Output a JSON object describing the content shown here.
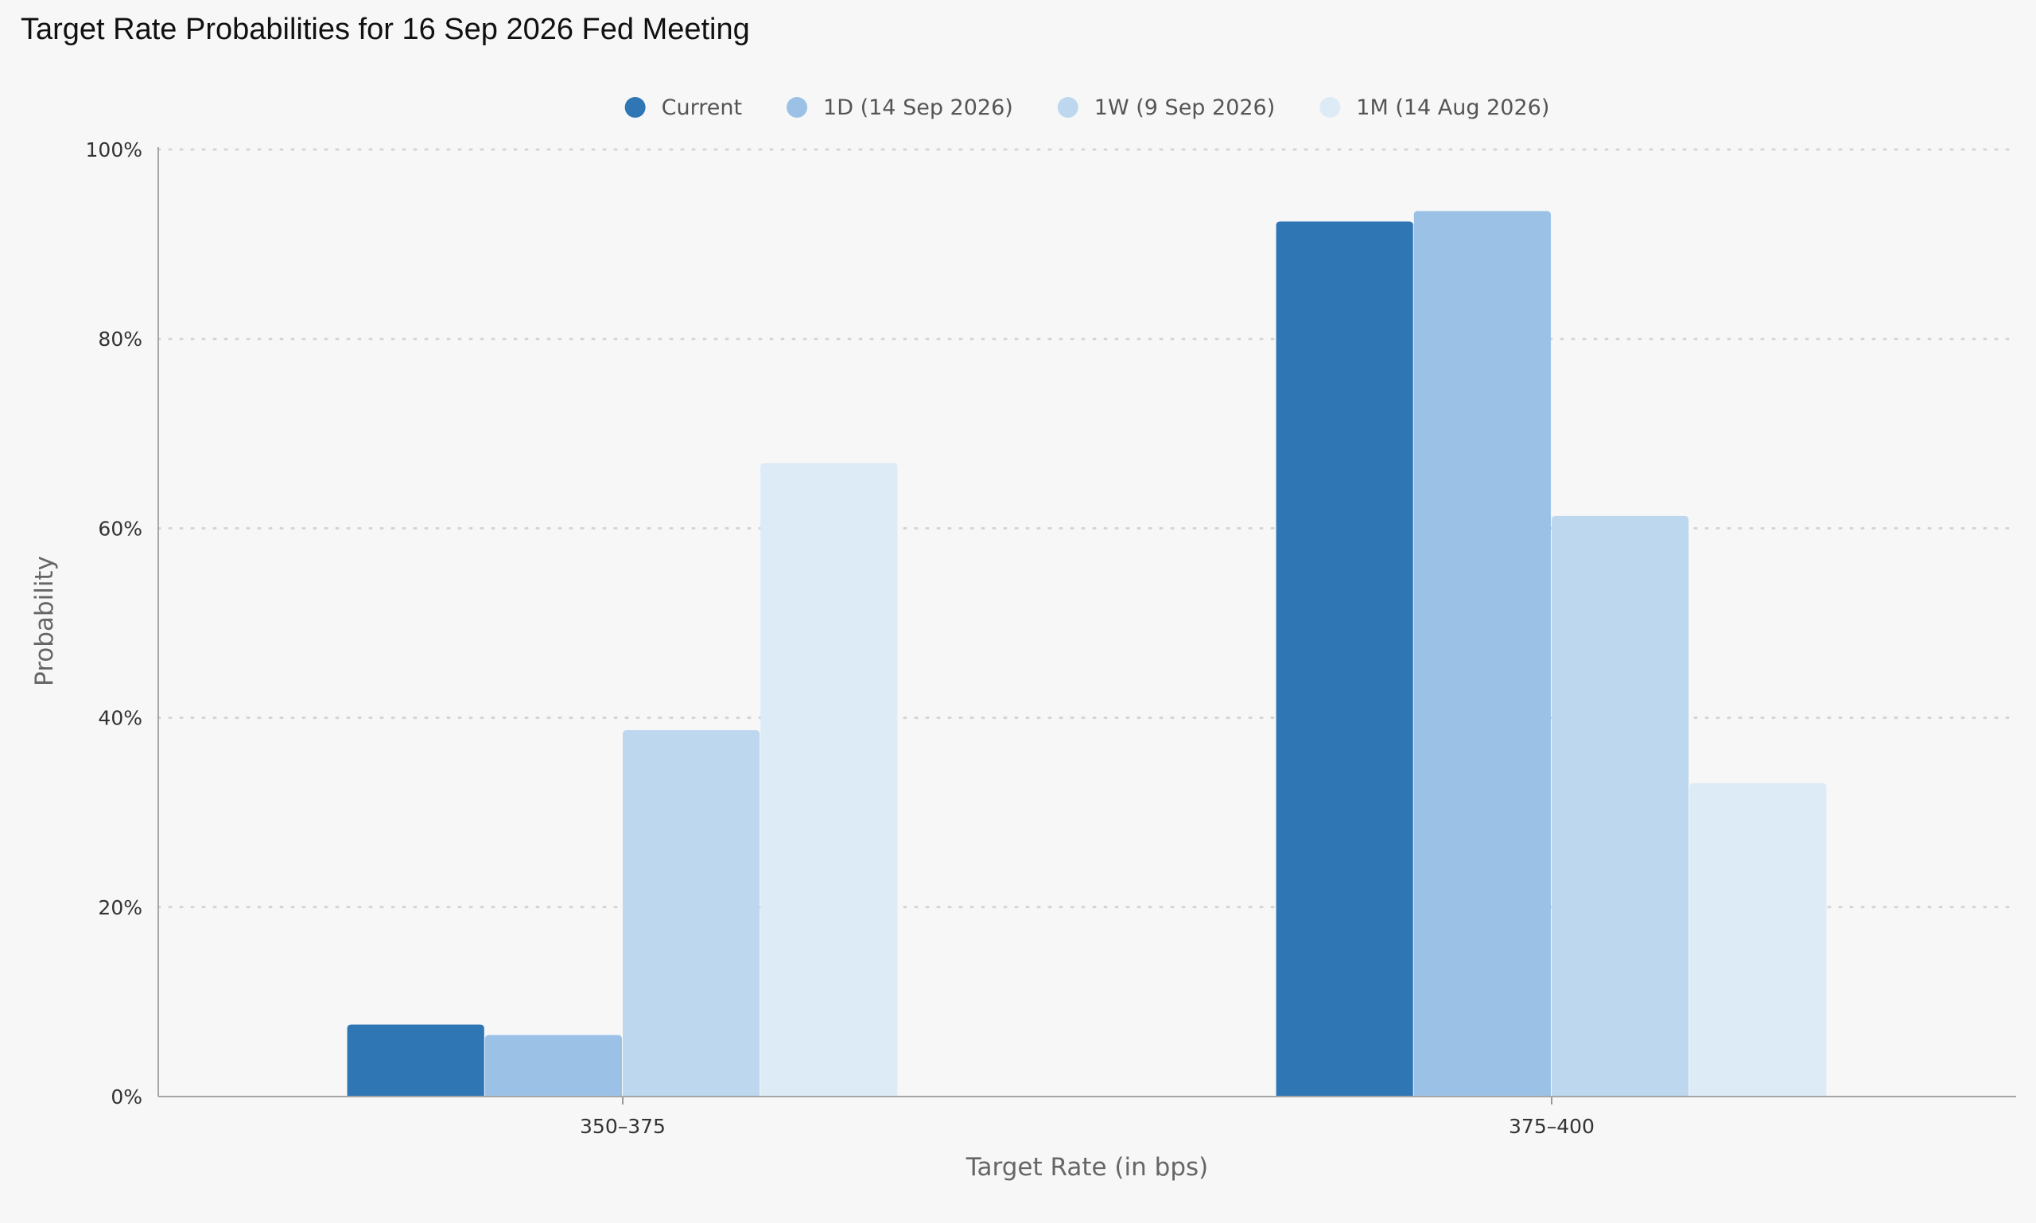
{
  "chart_data": {
    "type": "bar",
    "title": "Target Rate Probabilities for 16 Sep 2026 Fed Meeting",
    "xlabel": "Target Rate (in bps)",
    "ylabel": "Probability",
    "categories": [
      "350-375",
      "375-400"
    ],
    "series": [
      {
        "name": "Current",
        "color": "#2f76b5",
        "values": [
          7.6,
          92.4
        ]
      },
      {
        "name": "1D (14 Sep 2026)",
        "color": "#9bc2e6",
        "values": [
          6.5,
          93.5
        ]
      },
      {
        "name": "1W (9 Sep 2026)",
        "color": "#bdd7ee",
        "values": [
          38.7,
          61.3
        ]
      },
      {
        "name": "1M (14 Aug 2026)",
        "color": "#ddebf7",
        "values": [
          66.9,
          33.1
        ]
      }
    ],
    "ylim": [
      0,
      100
    ],
    "yticks": [
      "0%",
      "20%",
      "40%",
      "60%",
      "80%",
      "100%"
    ],
    "grid": "horizontal-dotted",
    "legend": "top-center"
  }
}
